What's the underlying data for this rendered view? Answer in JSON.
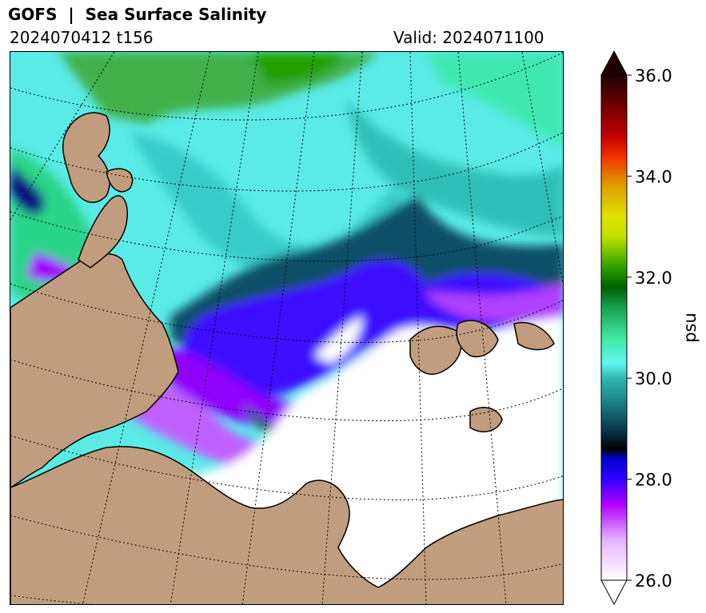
{
  "header": {
    "title": "GOFS  |  Sea Surface Salinity",
    "cycle": "2024070412 t156",
    "valid": "Valid: 2024071100"
  },
  "map": {
    "variable": "Sea Surface Salinity",
    "land_color": "#c19d7f",
    "open_water_color": "#ffffff"
  },
  "colorbar": {
    "units": "psu",
    "min": 26.0,
    "max": 36.0,
    "ticks": [
      "26.0",
      "28.0",
      "30.0",
      "32.0",
      "34.0",
      "36.0"
    ],
    "extend": "both",
    "stops": [
      {
        "value": 26.0,
        "color": "#ffffff"
      },
      {
        "value": 26.8,
        "color": "#e6b3ff"
      },
      {
        "value": 27.5,
        "color": "#b000ff"
      },
      {
        "value": 28.0,
        "color": "#3000ff"
      },
      {
        "value": 28.4,
        "color": "#0000d0"
      },
      {
        "value": 28.6,
        "color": "#000000"
      },
      {
        "value": 29.0,
        "color": "#0a3a50"
      },
      {
        "value": 29.5,
        "color": "#1a7f85"
      },
      {
        "value": 30.0,
        "color": "#2fb8b0"
      },
      {
        "value": 30.3,
        "color": "#5ff5ee"
      },
      {
        "value": 30.8,
        "color": "#40e8a0"
      },
      {
        "value": 31.4,
        "color": "#18a050"
      },
      {
        "value": 31.8,
        "color": "#006000"
      },
      {
        "value": 32.2,
        "color": "#30a000"
      },
      {
        "value": 32.8,
        "color": "#c0e000"
      },
      {
        "value": 33.2,
        "color": "#e0e000"
      },
      {
        "value": 33.8,
        "color": "#e0a000"
      },
      {
        "value": 34.4,
        "color": "#f03000"
      },
      {
        "value": 34.8,
        "color": "#c00000"
      },
      {
        "value": 35.4,
        "color": "#700000"
      },
      {
        "value": 36.0,
        "color": "#200000"
      }
    ]
  }
}
